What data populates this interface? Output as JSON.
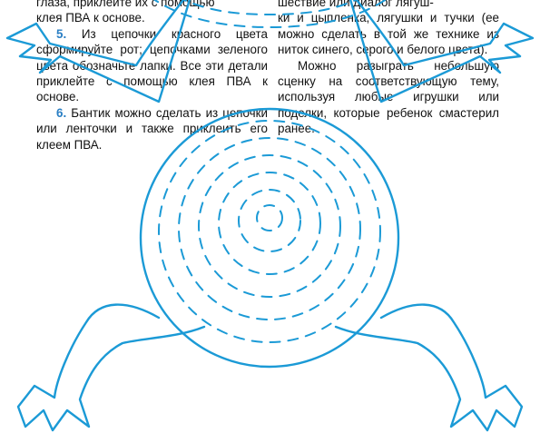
{
  "left_column": {
    "line_top": "глаза, приклейте их с помощью",
    "line_top_end": "клея ПВА к основе.",
    "step5_num": "5.",
    "step5_text": "Из цепочки красного цвета сформируйте рот; цепочками зеленого цвета обозначьте лапки. Все эти детали приклейте с помощью клея ПВА к основе.",
    "step6_num": "6.",
    "step6_text": "Бантик можно сделать из цепочки или ленточки и также приклеить его клеем ПВА."
  },
  "right_column": {
    "line_top": "шествие или диалог лягуш-",
    "para1_cont": "ки и цыпленка, лягушки и тучки (ее можно сделать в той же технике из ниток синего, серого и белого цвета).",
    "para2": "Можно разыграть небольшую сценку на соответствующую тему, используя любые игрушки или поделки, которые ребенок смастерил ранее."
  },
  "colors": {
    "outline": "#1b9ad6",
    "text": "#111111",
    "step_number": "#2a7fc4"
  }
}
